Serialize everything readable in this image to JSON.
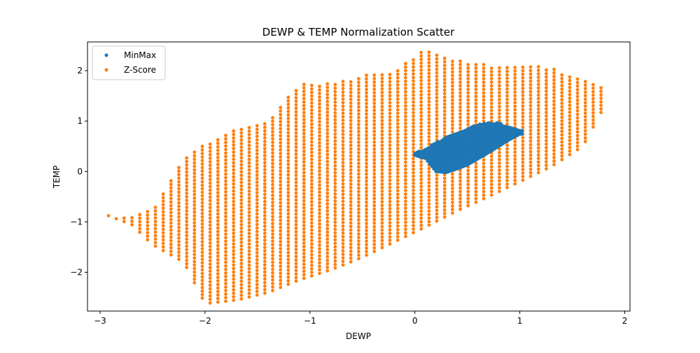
{
  "chart_data": {
    "type": "scatter",
    "title": "DEWP & TEMP Normalization Scatter",
    "xlabel": "DEWP",
    "ylabel": "TEMP",
    "xlim": [
      -3.12,
      2.05
    ],
    "ylim": [
      -2.77,
      2.57
    ],
    "x_ticks": [
      -3,
      -2,
      -1,
      0,
      1,
      2
    ],
    "x_tick_labels": [
      "−3",
      "−2",
      "−1",
      "0",
      "1",
      "2"
    ],
    "y_ticks": [
      -2,
      -1,
      0,
      1,
      2
    ],
    "y_tick_labels": [
      "−2",
      "−1",
      "0",
      "1",
      "2"
    ],
    "grid": false,
    "legend_position": "top-left",
    "series": [
      {
        "name": "MinMax",
        "color": "#1f77b4",
        "description_region": {
          "x_range": [
            0.0,
            1.02
          ],
          "cluster_edges": [
            [
              0.0,
              0.32,
              0.38
            ],
            [
              0.1,
              0.26,
              0.44
            ],
            [
              0.2,
              0.0,
              0.58
            ],
            [
              0.3,
              -0.02,
              0.68
            ],
            [
              0.4,
              0.05,
              0.78
            ],
            [
              0.5,
              0.13,
              0.86
            ],
            [
              0.6,
              0.25,
              0.93
            ],
            [
              0.7,
              0.37,
              0.98
            ],
            [
              0.8,
              0.5,
              0.96
            ],
            [
              0.9,
              0.63,
              0.9
            ],
            [
              1.0,
              0.74,
              0.84
            ]
          ]
        }
      },
      {
        "name": "Z-Score",
        "color": "#ff7f0e",
        "band_edges": [
          [
            -2.92,
            -0.88,
            -0.86
          ],
          [
            -2.7,
            -1.05,
            -0.9
          ],
          [
            -2.5,
            -1.45,
            -0.75
          ],
          [
            -2.2,
            -1.8,
            0.3
          ],
          [
            -2.0,
            -2.62,
            0.55
          ],
          [
            -1.7,
            -2.55,
            0.85
          ],
          [
            -1.4,
            -2.4,
            1.0
          ],
          [
            -1.1,
            -2.15,
            1.75
          ],
          [
            -0.8,
            -1.95,
            1.75
          ],
          [
            -0.5,
            -1.7,
            1.9
          ],
          [
            -0.2,
            -1.4,
            2.0
          ],
          [
            0.1,
            -1.1,
            2.42
          ],
          [
            0.4,
            -0.78,
            2.2
          ],
          [
            0.7,
            -0.5,
            2.12
          ],
          [
            1.0,
            -0.2,
            2.12
          ],
          [
            1.3,
            0.1,
            2.05
          ],
          [
            1.6,
            0.5,
            1.82
          ],
          [
            1.82,
            1.35,
            1.62
          ]
        ]
      }
    ]
  }
}
